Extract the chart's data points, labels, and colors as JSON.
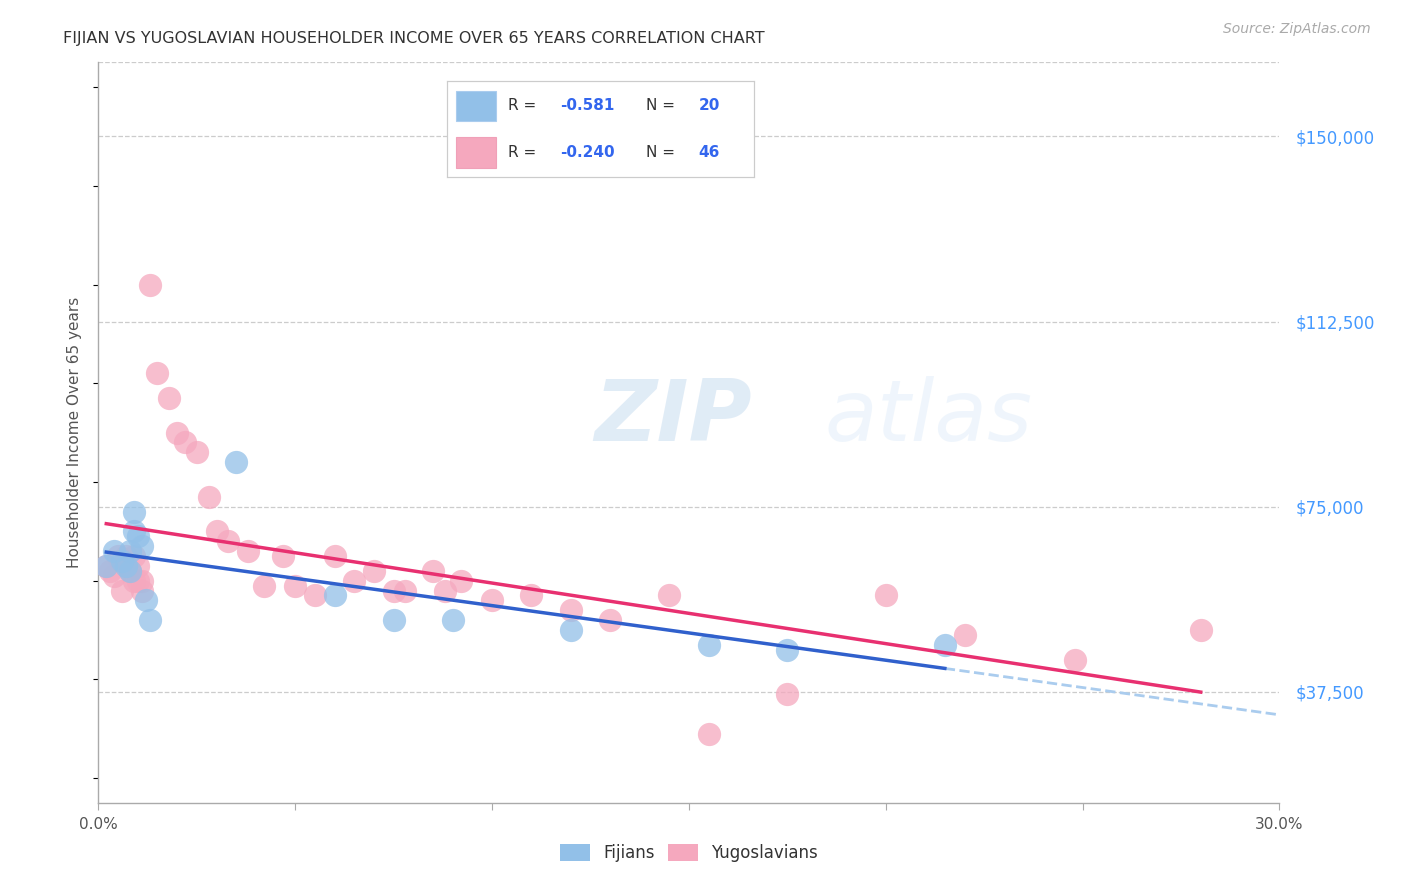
{
  "title": "FIJIAN VS YUGOSLAVIAN HOUSEHOLDER INCOME OVER 65 YEARS CORRELATION CHART",
  "source": "Source: ZipAtlas.com",
  "ylabel": "Householder Income Over 65 years",
  "ytick_labels": [
    "$37,500",
    "$75,000",
    "$112,500",
    "$150,000"
  ],
  "ytick_values": [
    37500,
    75000,
    112500,
    150000
  ],
  "ymin": 15000,
  "ymax": 165000,
  "xmin": 0.0,
  "xmax": 0.3,
  "fijian_color": "#92c0e8",
  "yugoslavian_color": "#f5a8be",
  "fijian_line_color": "#3060cc",
  "yugoslavian_line_color": "#e83070",
  "fijian_dashed_color": "#aaccee",
  "watermark_zip": "ZIP",
  "watermark_atlas": "atlas",
  "fijian_points_x": [
    0.002,
    0.004,
    0.006,
    0.007,
    0.008,
    0.008,
    0.009,
    0.009,
    0.01,
    0.011,
    0.012,
    0.013,
    0.035,
    0.06,
    0.075,
    0.09,
    0.12,
    0.155,
    0.175,
    0.215
  ],
  "fijian_points_y": [
    63000,
    66000,
    64000,
    63000,
    62000,
    66000,
    70000,
    74000,
    69000,
    67000,
    56000,
    52000,
    84000,
    57000,
    52000,
    52000,
    50000,
    47000,
    46000,
    47000
  ],
  "yugoslavian_points_x": [
    0.002,
    0.003,
    0.004,
    0.005,
    0.006,
    0.007,
    0.008,
    0.009,
    0.009,
    0.01,
    0.01,
    0.011,
    0.011,
    0.013,
    0.015,
    0.018,
    0.02,
    0.022,
    0.025,
    0.028,
    0.03,
    0.033,
    0.038,
    0.042,
    0.047,
    0.05,
    0.055,
    0.06,
    0.065,
    0.07,
    0.075,
    0.078,
    0.085,
    0.088,
    0.092,
    0.1,
    0.11,
    0.12,
    0.13,
    0.145,
    0.155,
    0.175,
    0.2,
    0.22,
    0.248,
    0.28
  ],
  "yugoslavian_points_y": [
    63000,
    62000,
    61000,
    65000,
    58000,
    65000,
    62000,
    65000,
    60000,
    63000,
    60000,
    60000,
    58000,
    120000,
    102000,
    97000,
    90000,
    88000,
    86000,
    77000,
    70000,
    68000,
    66000,
    59000,
    65000,
    59000,
    57000,
    65000,
    60000,
    62000,
    58000,
    58000,
    62000,
    58000,
    60000,
    56000,
    57000,
    54000,
    52000,
    57000,
    29000,
    37000,
    57000,
    49000,
    44000,
    50000
  ]
}
